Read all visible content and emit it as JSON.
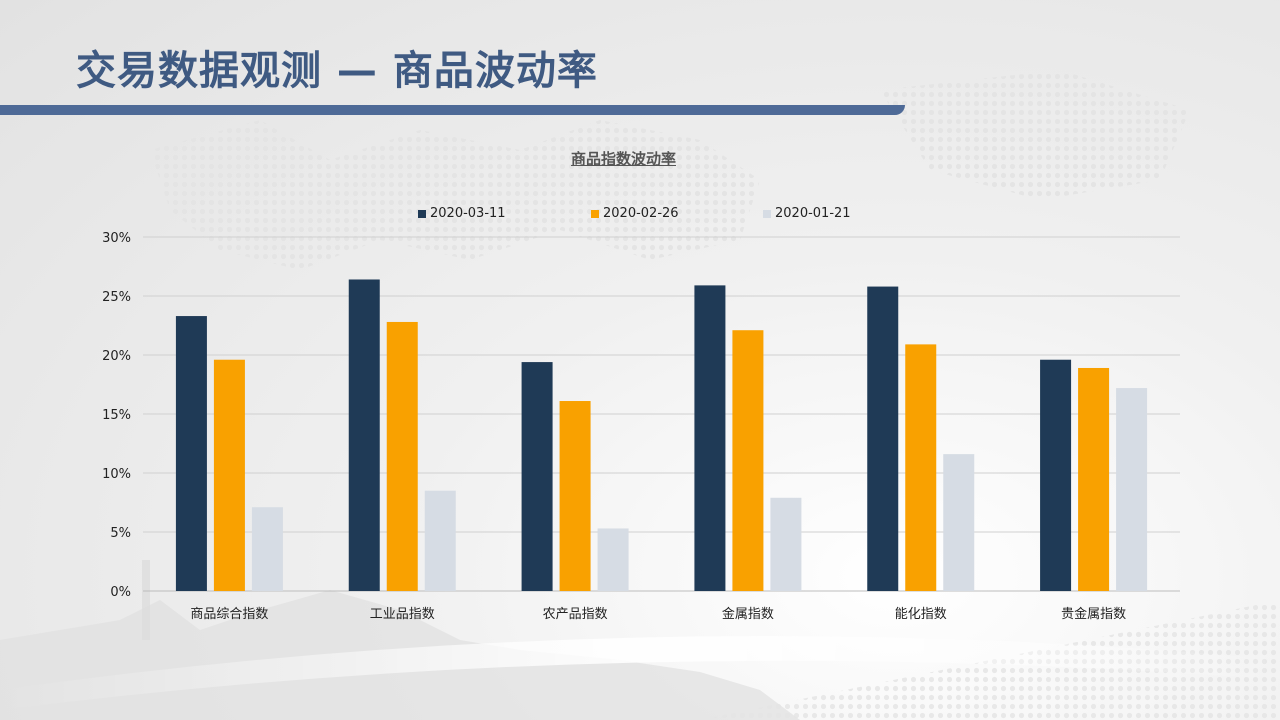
{
  "page": {
    "title": "交易数据观测 — 商品波动率"
  },
  "colors": {
    "title": "#3f5a82",
    "title_bar": "#4e6a97",
    "series": [
      "#1f3a56",
      "#f9a100",
      "#d6dce4"
    ],
    "gridline": "#d0d0d0"
  },
  "chart_data": {
    "type": "bar",
    "title": "商品指数波动率",
    "xlabel": "",
    "ylabel": "",
    "ylim": [
      0,
      30
    ],
    "yticks": [
      "0%",
      "5%",
      "10%",
      "15%",
      "20%",
      "25%",
      "30%"
    ],
    "categories": [
      "商品综合指数",
      "工业品指数",
      "农产品指数",
      "金属指数",
      "能化指数",
      "贵金属指数"
    ],
    "series": [
      {
        "name": "2020-03-11",
        "values": [
          23.3,
          26.4,
          19.4,
          25.9,
          25.8,
          19.6
        ]
      },
      {
        "name": "2020-02-26",
        "values": [
          19.6,
          22.8,
          16.1,
          22.1,
          20.9,
          18.9
        ]
      },
      {
        "name": "2020-01-21",
        "values": [
          7.1,
          8.5,
          5.3,
          7.9,
          11.6,
          17.2
        ]
      }
    ],
    "grid": true,
    "legend_position": "top"
  }
}
